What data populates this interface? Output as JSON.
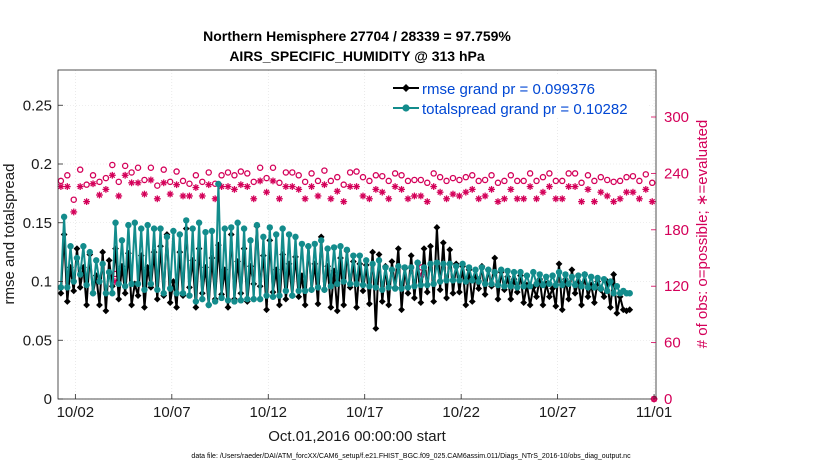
{
  "chart_data": {
    "type": "line",
    "title": "Northern Hemisphere 27704 / 28339 = 97.759%",
    "subtitle": "AIRS_SPECIFIC_HUMIDITY @ 313 hPa",
    "xlabel": "Oct.01,2016 00:00:00 start",
    "ylabel": "rmse and totalspread",
    "ylabel_right": "# of obs: o=possible; ∗=evaluated",
    "footer": "data file: /Users/raeder/DAI/ATM_forcXX/CAM6_setup/f.e21.FHIST_BGC.f09_025.CAM6assim.011/Diags_NTrS_2016-10/obs_diag_output.nc",
    "x_ticks": [
      {
        "day": 2,
        "label": "10/02"
      },
      {
        "day": 7,
        "label": "10/07"
      },
      {
        "day": 12,
        "label": "10/12"
      },
      {
        "day": 17,
        "label": "10/17"
      },
      {
        "day": 22,
        "label": "10/22"
      },
      {
        "day": 27,
        "label": "10/27"
      },
      {
        "day": 32,
        "label": "11/01"
      }
    ],
    "xlim": [
      1.1,
      32.1
    ],
    "ylim": [
      0,
      0.28
    ],
    "y_ticks": [
      0,
      0.05,
      0.1,
      0.15,
      0.2,
      0.25
    ],
    "y_tick_labels": [
      "0",
      "0.05",
      "0.1",
      "0.15",
      "0.2",
      "0.25"
    ],
    "ylim_right": [
      0,
      350
    ],
    "y_ticks_right": [
      0,
      60,
      120,
      180,
      240,
      300
    ],
    "y_tick_labels_right": [
      "0",
      "60",
      "120",
      "180",
      "240",
      "300"
    ],
    "series": [
      {
        "name": "rmse grand pr = 0.099376",
        "color": "#000000",
        "marker": "diamond",
        "values": [
          0.09,
          0.14,
          0.083,
          0.112,
          0.092,
          0.128,
          0.095,
          0.112,
          0.08,
          0.123,
          0.09,
          0.105,
          0.08,
          0.125,
          0.075,
          0.118,
          0.096,
          0.128,
          0.085,
          0.113,
          0.09,
          0.124,
          0.08,
          0.098,
          0.088,
          0.122,
          0.078,
          0.112,
          0.095,
          0.125,
          0.085,
          0.13,
          0.088,
          0.14,
          0.082,
          0.1,
          0.078,
          0.125,
          0.088,
          0.145,
          0.095,
          0.118,
          0.078,
          0.128,
          0.09,
          0.112,
          0.08,
          0.12,
          0.085,
          0.131,
          0.089,
          0.11,
          0.078,
          0.14,
          0.085,
          0.117,
          0.09,
          0.128,
          0.083,
          0.113,
          0.098,
          0.147,
          0.096,
          0.122,
          0.076,
          0.135,
          0.091,
          0.11,
          0.08,
          0.123,
          0.085,
          0.115,
          0.088,
          0.121,
          0.087,
          0.105,
          0.08,
          0.13,
          0.093,
          0.115,
          0.081,
          0.138,
          0.093,
          0.113,
          0.078,
          0.109,
          0.075,
          0.12,
          0.08,
          0.126,
          0.095,
          0.117,
          0.078,
          0.115,
          0.092,
          0.114,
          0.081,
          0.125,
          0.06,
          0.123,
          0.083,
          0.113,
          0.08,
          0.117,
          0.095,
          0.128,
          0.076,
          0.111,
          0.09,
          0.122,
          0.086,
          0.116,
          0.082,
          0.128,
          0.091,
          0.13,
          0.083,
          0.146,
          0.093,
          0.133,
          0.086,
          0.127,
          0.09,
          0.115,
          0.091,
          0.113,
          0.08,
          0.11,
          0.083,
          0.104,
          0.094,
          0.113,
          0.089,
          0.11,
          0.096,
          0.12,
          0.085,
          0.108,
          0.093,
          0.104,
          0.085,
          0.102,
          0.091,
          0.105,
          0.082,
          0.097,
          0.08,
          0.095,
          0.087,
          0.102,
          0.08,
          0.098,
          0.087,
          0.094,
          0.079,
          0.115,
          0.076,
          0.102,
          0.085,
          0.11,
          0.09,
          0.1,
          0.08,
          0.106,
          0.087,
          0.097,
          0.082,
          0.1,
          0.093,
          0.087,
          0.1,
          0.078,
          0.106,
          0.073,
          0.087,
          0.076,
          0.075,
          0.076
        ]
      },
      {
        "name": "totalspread grand pr = 0.10282",
        "color": "#138c8c",
        "marker": "circle",
        "values": [
          0.095,
          0.155,
          0.095,
          0.13,
          0.1,
          0.12,
          0.106,
          0.13,
          0.097,
          0.125,
          0.09,
          0.118,
          0.1,
          0.115,
          0.09,
          0.108,
          0.09,
          0.15,
          0.098,
          0.135,
          0.096,
          0.148,
          0.098,
          0.15,
          0.098,
          0.145,
          0.093,
          0.148,
          0.098,
          0.145,
          0.093,
          0.145,
          0.09,
          0.138,
          0.094,
          0.143,
          0.09,
          0.14,
          0.09,
          0.152,
          0.088,
          0.145,
          0.083,
          0.15,
          0.085,
          0.142,
          0.08,
          0.143,
          0.083,
          0.183,
          0.086,
          0.145,
          0.084,
          0.146,
          0.083,
          0.15,
          0.084,
          0.145,
          0.085,
          0.135,
          0.085,
          0.148,
          0.085,
          0.138,
          0.088,
          0.146,
          0.087,
          0.14,
          0.088,
          0.145,
          0.092,
          0.14,
          0.088,
          0.138,
          0.092,
          0.132,
          0.092,
          0.13,
          0.093,
          0.132,
          0.095,
          0.135,
          0.093,
          0.128,
          0.096,
          0.129,
          0.098,
          0.13,
          0.1,
          0.127,
          0.098,
          0.122,
          0.098,
          0.122,
          0.097,
          0.118,
          0.096,
          0.115,
          0.095,
          0.118,
          0.093,
          0.112,
          0.095,
          0.11,
          0.094,
          0.113,
          0.094,
          0.112,
          0.095,
          0.112,
          0.096,
          0.116,
          0.097,
          0.112,
          0.097,
          0.115,
          0.098,
          0.116,
          0.1,
          0.115,
          0.101,
          0.115,
          0.101,
          0.113,
          0.101,
          0.115,
          0.1,
          0.112,
          0.101,
          0.11,
          0.1,
          0.112,
          0.098,
          0.11,
          0.098,
          0.108,
          0.097,
          0.11,
          0.096,
          0.109,
          0.096,
          0.108,
          0.095,
          0.108,
          0.096,
          0.105,
          0.096,
          0.108,
          0.098,
          0.106,
          0.097,
          0.104,
          0.098,
          0.105,
          0.097,
          0.108,
          0.097,
          0.106,
          0.098,
          0.104,
          0.097,
          0.105,
          0.096,
          0.106,
          0.095,
          0.104,
          0.095,
          0.103,
          0.094,
          0.102,
          0.092,
          0.1,
          0.09,
          0.096,
          0.09,
          0.092,
          0.09,
          0.09
        ]
      },
      {
        "name": "possible obs",
        "axis": "right",
        "color": "#d40059",
        "marker": "o",
        "values": [
          232,
          262,
          238,
          242,
          212,
          268,
          244,
          262,
          228,
          274,
          238,
          278,
          231,
          260,
          235,
          270,
          249,
          260,
          231,
          280,
          248,
          268,
          241,
          260,
          246,
          276,
          233,
          270,
          246,
          264,
          227,
          248,
          244,
          266,
          231,
          262,
          242,
          276,
          232,
          266,
          229,
          250,
          238,
          263,
          231,
          270,
          241,
          266,
          229,
          261,
          238,
          275,
          241,
          263,
          238,
          263,
          242,
          270,
          240,
          259,
          231,
          272,
          246,
          276,
          235,
          269,
          246,
          262,
          230,
          268,
          241,
          270,
          241,
          255,
          238,
          272,
          231,
          266,
          240,
          263,
          232,
          255,
          243,
          272,
          232,
          268,
          236,
          255,
          228,
          271,
          241,
          264,
          242,
          255,
          236,
          272,
          232,
          256,
          238,
          270,
          237,
          262,
          232,
          268,
          240,
          260,
          238,
          261,
          232,
          271,
          233,
          258,
          233,
          262,
          230,
          263,
          240,
          258,
          236,
          263,
          232,
          255,
          235,
          270,
          233,
          254,
          236,
          261,
          238,
          258,
          232,
          270,
          233,
          261,
          238,
          258,
          230,
          255,
          232,
          255,
          238,
          263,
          232,
          248,
          232,
          262,
          240,
          258,
          232,
          259,
          236,
          256,
          240,
          252,
          232,
          256,
          232,
          265,
          240,
          251,
          240,
          250,
          230,
          253,
          238,
          250,
          232,
          250,
          236,
          247,
          233,
          252,
          231,
          255,
          232,
          251,
          236,
          249,
          237,
          246,
          232,
          249,
          239,
          245,
          230,
          249
        ]
      },
      {
        "name": "evaluated obs",
        "axis": "right",
        "color": "#d40059",
        "marker": "asterisk",
        "values": [
          226,
          255,
          226,
          232,
          199,
          256,
          226,
          254,
          210,
          266,
          229,
          268,
          217,
          250,
          223,
          258,
          238,
          252,
          216,
          270,
          238,
          257,
          230,
          250,
          230,
          264,
          218,
          260,
          233,
          254,
          213,
          236,
          230,
          256,
          218,
          252,
          228,
          266,
          216,
          256,
          216,
          238,
          225,
          253,
          216,
          258,
          228,
          256,
          213,
          251,
          226,
          265,
          226,
          253,
          223,
          253,
          228,
          260,
          226,
          248,
          213,
          262,
          232,
          266,
          220,
          259,
          232,
          252,
          213,
          258,
          226,
          260,
          226,
          242,
          223,
          262,
          213,
          256,
          226,
          253,
          216,
          243,
          228,
          262,
          213,
          258,
          221,
          242,
          210,
          261,
          226,
          254,
          226,
          242,
          216,
          262,
          213,
          246,
          223,
          260,
          220,
          252,
          213,
          258,
          226,
          250,
          223,
          251,
          213,
          261,
          216,
          248,
          216,
          252,
          210,
          253,
          226,
          248,
          220,
          253,
          213,
          245,
          218,
          260,
          216,
          243,
          220,
          251,
          223,
          248,
          213,
          260,
          216,
          251,
          223,
          248,
          210,
          245,
          213,
          245,
          223,
          253,
          213,
          236,
          213,
          252,
          226,
          248,
          213,
          249,
          220,
          246,
          226,
          240,
          213,
          246,
          213,
          255,
          226,
          240,
          226,
          238,
          210,
          243,
          223,
          238,
          210,
          238,
          220,
          235,
          216,
          241,
          210,
          245,
          213,
          240,
          220,
          238,
          220,
          233,
          213,
          238,
          223,
          232,
          210,
          238
        ]
      }
    ],
    "outliers": [
      {
        "series": "possible obs",
        "day": 4.05,
        "value": 133
      },
      {
        "series": "evaluated obs",
        "day": 4.05,
        "value": 125
      },
      {
        "series": "possible obs",
        "day": 19.95,
        "value": 140
      },
      {
        "series": "evaluated obs",
        "day": 19.95,
        "value": 132
      },
      {
        "series": "possible obs",
        "day": 32.0,
        "value": 0
      },
      {
        "series": "evaluated obs",
        "day": 32.0,
        "value": 0
      }
    ],
    "legend_position": "top-right",
    "grid": true
  }
}
